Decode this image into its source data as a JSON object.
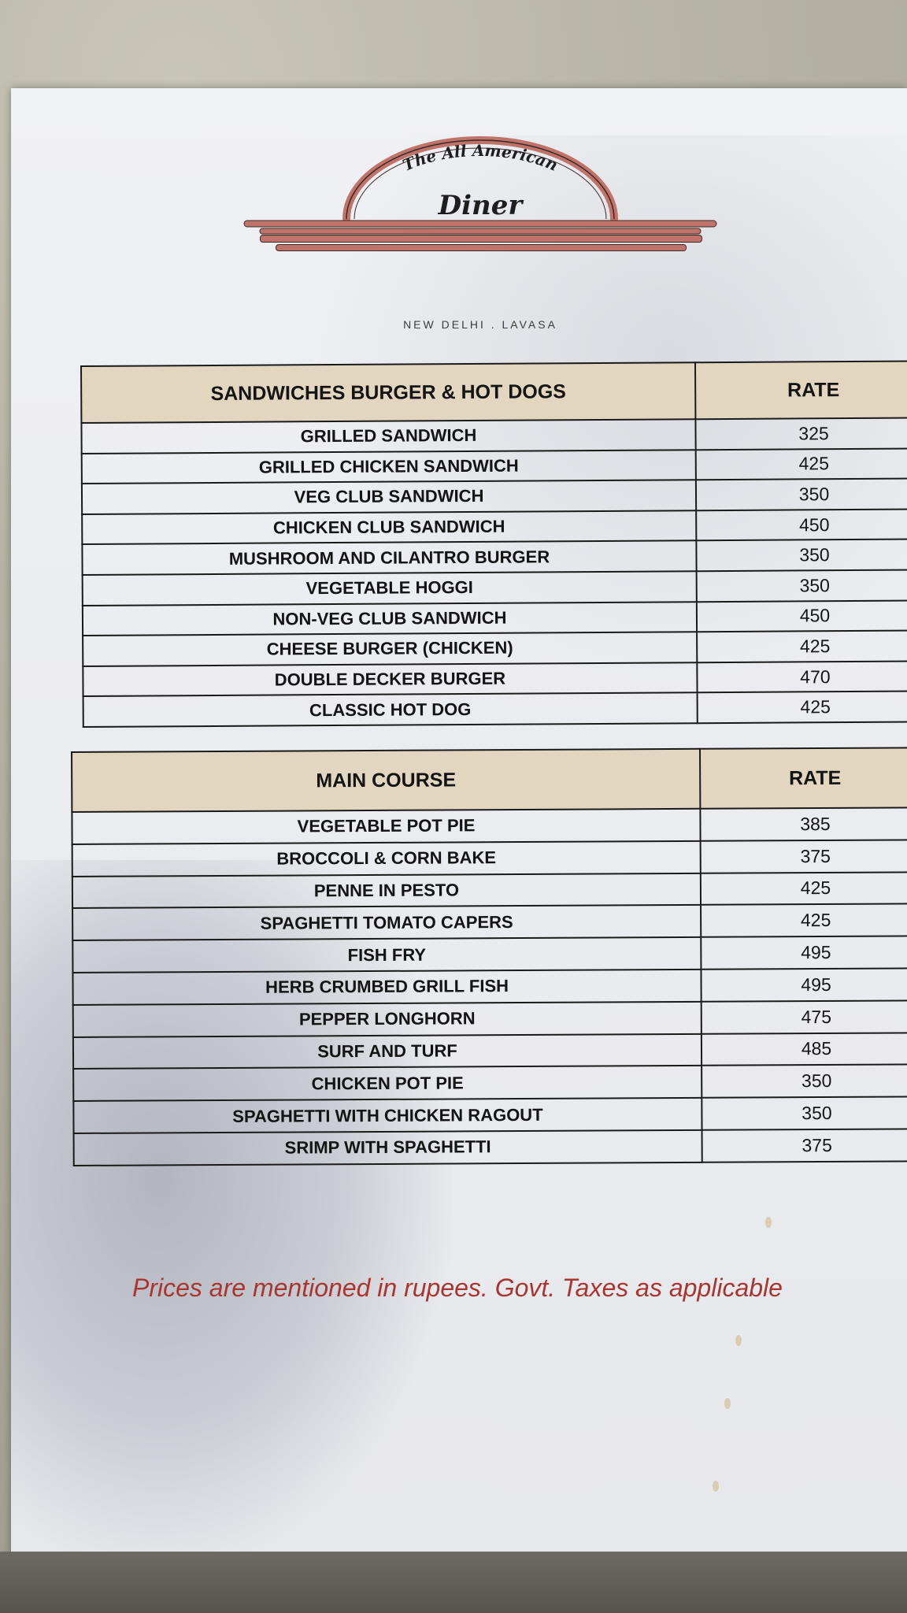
{
  "logo": {
    "script_top": "The All American",
    "script_main": "Diner",
    "locations": "NEW DELHI . LAVASA",
    "brand_color": "#c0736a"
  },
  "sandwiches": {
    "header": "SANDWICHES BURGER & HOT DOGS",
    "rate_header": "RATE",
    "items": [
      {
        "name": "GRILLED SANDWICH",
        "price": "325"
      },
      {
        "name": "GRILLED CHICKEN SANDWICH",
        "price": "425"
      },
      {
        "name": "VEG CLUB SANDWICH",
        "price": "350"
      },
      {
        "name": "CHICKEN CLUB SANDWICH",
        "price": "450"
      },
      {
        "name": "MUSHROOM AND CILANTRO BURGER",
        "price": "350"
      },
      {
        "name": "VEGETABLE HOGGI",
        "price": "350"
      },
      {
        "name": "NON-VEG CLUB SANDWICH",
        "price": "450"
      },
      {
        "name": "CHEESE BURGER (CHICKEN)",
        "price": "425"
      },
      {
        "name": "DOUBLE DECKER BURGER",
        "price": "470"
      },
      {
        "name": "CLASSIC HOT DOG",
        "price": "425"
      }
    ]
  },
  "main_course": {
    "header": "MAIN COURSE",
    "rate_header": "RATE",
    "items": [
      {
        "name": "VEGETABLE POT PIE",
        "price": "385"
      },
      {
        "name": "BROCCOLI & CORN BAKE",
        "price": "375"
      },
      {
        "name": "PENNE IN PESTO",
        "price": "425"
      },
      {
        "name": "SPAGHETTI TOMATO CAPERS",
        "price": "425"
      },
      {
        "name": "FISH FRY",
        "price": "495"
      },
      {
        "name": "HERB CRUMBED GRILL FISH",
        "price": "495"
      },
      {
        "name": "PEPPER LONGHORN",
        "price": "475"
      },
      {
        "name": "SURF AND TURF",
        "price": "485"
      },
      {
        "name": "CHICKEN POT PIE",
        "price": "350"
      },
      {
        "name": "SPAGHETTI WITH CHICKEN RAGOUT",
        "price": "350"
      },
      {
        "name": "SRIMP WITH SPAGHETTI",
        "price": "375"
      }
    ]
  },
  "footer_note": "Prices are mentioned in rupees. Govt. Taxes as applicable",
  "colors": {
    "header_fill": "#e2d6c1",
    "note_red": "#a8352f"
  }
}
